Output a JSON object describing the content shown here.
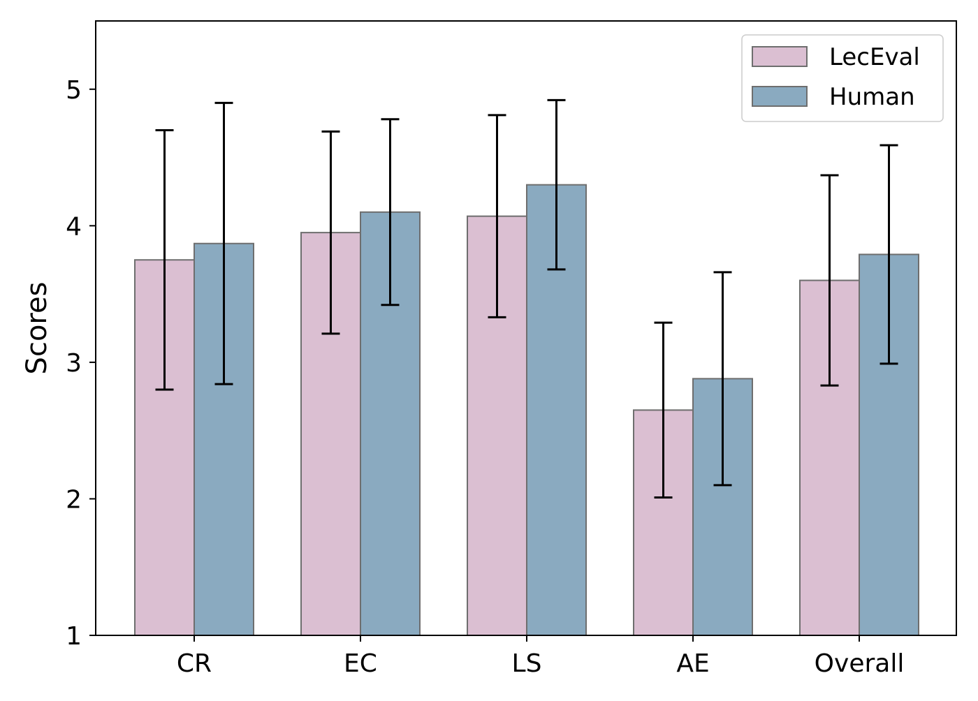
{
  "chart_data": {
    "type": "bar",
    "title": "",
    "xlabel": "",
    "ylabel": "Scores",
    "categories": [
      "CR",
      "EC",
      "LS",
      "AE",
      "Overall"
    ],
    "ylim": [
      1,
      5.5
    ],
    "yticks": [
      1,
      2,
      3,
      4,
      5
    ],
    "grid": false,
    "legend_position": "top-right",
    "series": [
      {
        "name": "LecEval",
        "color": "#dbbfd2",
        "values": [
          3.75,
          3.95,
          4.07,
          2.65,
          3.6
        ],
        "error_low": [
          2.8,
          3.21,
          3.33,
          2.01,
          2.83
        ],
        "error_high": [
          4.7,
          4.69,
          4.81,
          3.29,
          4.37
        ]
      },
      {
        "name": "Human",
        "color": "#8aaac0",
        "values": [
          3.87,
          4.1,
          4.3,
          2.88,
          3.79
        ],
        "error_low": [
          2.84,
          3.42,
          3.68,
          2.1,
          2.99
        ],
        "error_high": [
          4.9,
          4.78,
          4.92,
          3.66,
          4.59
        ]
      }
    ]
  }
}
